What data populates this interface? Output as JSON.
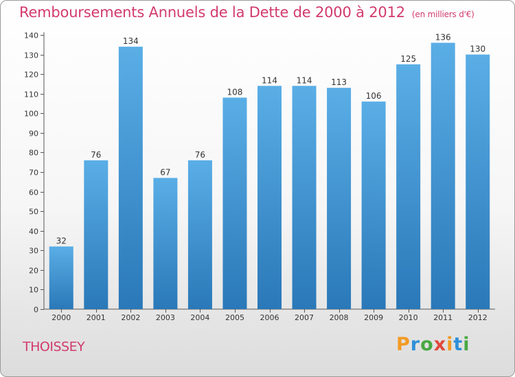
{
  "title": "Remboursements Annuels de la Dette de 2000 à 2012",
  "unit": "(en milliers d'€)",
  "city": "THOISSEY",
  "logo": {
    "letters": [
      "P",
      "r",
      "o",
      "x",
      "i",
      "t",
      "i"
    ],
    "colors": [
      "#f39a23",
      "#2f8fd8",
      "#49a842",
      "#e0483d",
      "#f39a23",
      "#2f8fd8",
      "#49a842"
    ]
  },
  "chart_data": {
    "type": "bar",
    "categories": [
      "2000",
      "2001",
      "2002",
      "2003",
      "2004",
      "2005",
      "2006",
      "2007",
      "2008",
      "2009",
      "2010",
      "2011",
      "2012"
    ],
    "values": [
      32,
      76,
      134,
      67,
      76,
      108,
      114,
      114,
      113,
      106,
      125,
      136,
      130
    ],
    "ylim": [
      0,
      140
    ],
    "yticks": [
      0,
      10,
      20,
      30,
      40,
      50,
      60,
      70,
      80,
      90,
      100,
      110,
      120,
      130,
      140
    ],
    "grid": false,
    "legend": "none",
    "bar_color_top": "#5aaee6",
    "bar_color_bottom": "#2a78b8"
  }
}
